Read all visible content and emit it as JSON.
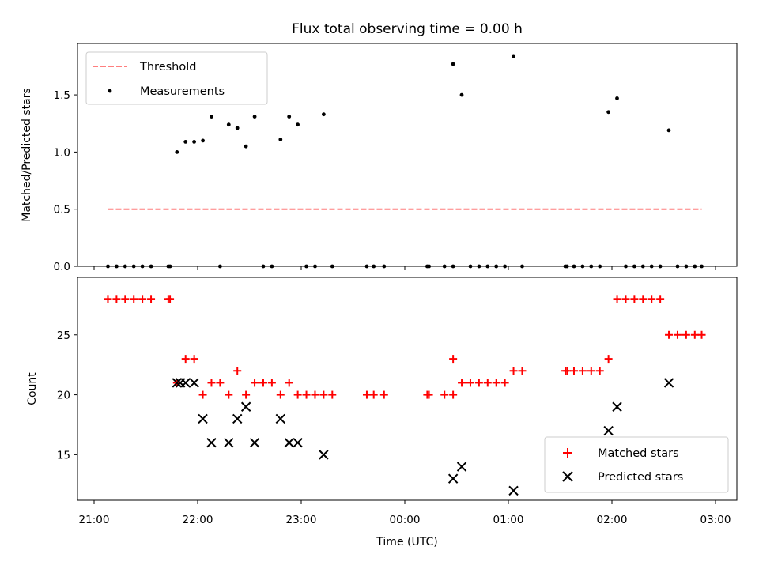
{
  "title": "Flux total observing time = 0.00 h",
  "colors": {
    "threshold": "#ff7f7f",
    "measurements": "#000000",
    "matched": "#ff0000",
    "predicted": "#000000"
  },
  "chart_data": [
    {
      "type": "scatter",
      "ylabel": "Matched/Predicted stars",
      "ylim": [
        0,
        1.95
      ],
      "yticks": [
        0.0,
        0.5,
        1.0,
        1.5
      ],
      "ytick_labels": [
        "0.0",
        "0.5",
        "1.0",
        "1.5"
      ],
      "legend_position": "top-left",
      "series": [
        {
          "name": "Threshold",
          "kind": "dashed-line",
          "points": [
            [
              "21:08",
              0.5
            ],
            [
              "02:52",
              0.5
            ]
          ]
        },
        {
          "name": "Measurements",
          "kind": "dots",
          "points": [
            [
              "21:08",
              0
            ],
            [
              "21:13",
              0
            ],
            [
              "21:18",
              0
            ],
            [
              "21:23",
              0
            ],
            [
              "21:28",
              0
            ],
            [
              "21:33",
              0
            ],
            [
              "21:43",
              0
            ],
            [
              "21:44",
              0
            ],
            [
              "21:48",
              1.0
            ],
            [
              "21:53",
              1.09
            ],
            [
              "21:58",
              1.09
            ],
            [
              "22:03",
              1.1
            ],
            [
              "22:08",
              1.31
            ],
            [
              "22:13",
              0
            ],
            [
              "22:18",
              1.24
            ],
            [
              "22:23",
              1.21
            ],
            [
              "22:28",
              1.05
            ],
            [
              "22:33",
              1.31
            ],
            [
              "22:38",
              0
            ],
            [
              "22:43",
              0
            ],
            [
              "22:48",
              1.11
            ],
            [
              "22:53",
              1.31
            ],
            [
              "22:58",
              1.24
            ],
            [
              "23:03",
              0
            ],
            [
              "23:08",
              0
            ],
            [
              "23:13",
              1.33
            ],
            [
              "23:18",
              0
            ],
            [
              "23:38",
              0
            ],
            [
              "23:42",
              0
            ],
            [
              "23:48",
              0
            ],
            [
              "00:13",
              0
            ],
            [
              "00:14",
              0
            ],
            [
              "00:23",
              0
            ],
            [
              "00:28",
              0
            ],
            [
              "00:28",
              1.77
            ],
            [
              "00:33",
              1.5
            ],
            [
              "00:38",
              0
            ],
            [
              "00:43",
              0
            ],
            [
              "00:48",
              0
            ],
            [
              "00:53",
              0
            ],
            [
              "00:58",
              0
            ],
            [
              "01:03",
              1.84
            ],
            [
              "01:08",
              0
            ],
            [
              "01:33",
              0
            ],
            [
              "01:34",
              0
            ],
            [
              "01:38",
              0
            ],
            [
              "01:43",
              0
            ],
            [
              "01:48",
              0
            ],
            [
              "01:53",
              0
            ],
            [
              "01:58",
              1.35
            ],
            [
              "02:03",
              1.47
            ],
            [
              "02:08",
              0
            ],
            [
              "02:13",
              0
            ],
            [
              "02:18",
              0
            ],
            [
              "02:23",
              0
            ],
            [
              "02:28",
              0
            ],
            [
              "02:33",
              1.19
            ],
            [
              "02:38",
              0
            ],
            [
              "02:43",
              0
            ],
            [
              "02:48",
              0
            ],
            [
              "02:52",
              0
            ]
          ]
        }
      ]
    },
    {
      "type": "scatter",
      "xlabel": "Time (UTC)",
      "ylabel": "Count",
      "ylim": [
        11.2,
        29.8
      ],
      "yticks": [
        15,
        20,
        25
      ],
      "ytick_labels": [
        "15",
        "20",
        "25"
      ],
      "xticks": [
        "21:00",
        "22:00",
        "23:00",
        "00:00",
        "01:00",
        "02:00",
        "03:00"
      ],
      "legend_position": "bottom-right",
      "series": [
        {
          "name": "Matched stars",
          "kind": "plus",
          "points": [
            [
              "21:08",
              28
            ],
            [
              "21:13",
              28
            ],
            [
              "21:18",
              28
            ],
            [
              "21:23",
              28
            ],
            [
              "21:28",
              28
            ],
            [
              "21:33",
              28
            ],
            [
              "21:43",
              28
            ],
            [
              "21:44",
              28
            ],
            [
              "21:48",
              21
            ],
            [
              "21:53",
              23
            ],
            [
              "21:58",
              23
            ],
            [
              "22:03",
              20
            ],
            [
              "22:08",
              21
            ],
            [
              "22:13",
              21
            ],
            [
              "22:18",
              20
            ],
            [
              "22:23",
              22
            ],
            [
              "22:28",
              20
            ],
            [
              "22:33",
              21
            ],
            [
              "22:38",
              21
            ],
            [
              "22:43",
              21
            ],
            [
              "22:48",
              20
            ],
            [
              "22:53",
              21
            ],
            [
              "22:58",
              20
            ],
            [
              "23:03",
              20
            ],
            [
              "23:08",
              20
            ],
            [
              "23:13",
              20
            ],
            [
              "23:18",
              20
            ],
            [
              "23:38",
              20
            ],
            [
              "23:42",
              20
            ],
            [
              "23:48",
              20
            ],
            [
              "00:13",
              20
            ],
            [
              "00:14",
              20
            ],
            [
              "00:23",
              20
            ],
            [
              "00:28",
              20
            ],
            [
              "00:28",
              23
            ],
            [
              "00:33",
              21
            ],
            [
              "00:38",
              21
            ],
            [
              "00:43",
              21
            ],
            [
              "00:48",
              21
            ],
            [
              "00:53",
              21
            ],
            [
              "00:58",
              21
            ],
            [
              "01:03",
              22
            ],
            [
              "01:08",
              22
            ],
            [
              "01:33",
              22
            ],
            [
              "01:34",
              22
            ],
            [
              "01:38",
              22
            ],
            [
              "01:43",
              22
            ],
            [
              "01:48",
              22
            ],
            [
              "01:53",
              22
            ],
            [
              "01:58",
              23
            ],
            [
              "02:03",
              28
            ],
            [
              "02:08",
              28
            ],
            [
              "02:13",
              28
            ],
            [
              "02:18",
              28
            ],
            [
              "02:23",
              28
            ],
            [
              "02:28",
              28
            ],
            [
              "02:33",
              25
            ],
            [
              "02:38",
              25
            ],
            [
              "02:43",
              25
            ],
            [
              "02:48",
              25
            ],
            [
              "02:52",
              25
            ]
          ]
        },
        {
          "name": "Predicted stars",
          "kind": "cross",
          "points": [
            [
              "21:48",
              21
            ],
            [
              "21:50",
              21
            ],
            [
              "21:53",
              21
            ],
            [
              "21:58",
              21
            ],
            [
              "22:03",
              18
            ],
            [
              "22:08",
              16
            ],
            [
              "22:18",
              16
            ],
            [
              "22:23",
              18
            ],
            [
              "22:28",
              19
            ],
            [
              "22:33",
              16
            ],
            [
              "22:48",
              18
            ],
            [
              "22:53",
              16
            ],
            [
              "22:58",
              16
            ],
            [
              "23:13",
              15
            ],
            [
              "00:28",
              13
            ],
            [
              "00:33",
              14
            ],
            [
              "01:03",
              12
            ],
            [
              "01:58",
              17
            ],
            [
              "02:03",
              19
            ],
            [
              "02:33",
              21
            ]
          ]
        }
      ]
    }
  ]
}
